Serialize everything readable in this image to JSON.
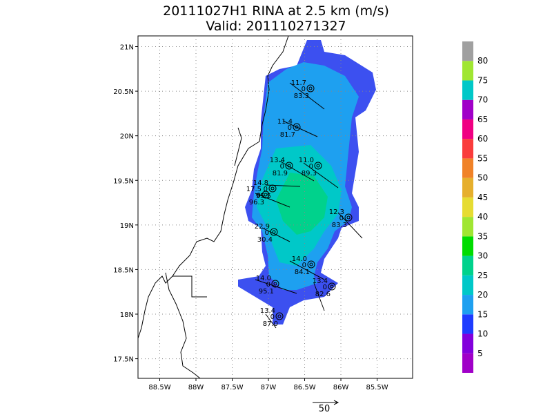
{
  "title": [
    "20111027H1 RINA at 2.5 km (m/s)",
    "Valid: 201110271327"
  ],
  "map": {
    "xlim": [
      -88.8,
      -85.01
    ],
    "ylim": [
      17.28,
      21.12
    ],
    "xticks": [
      {
        "value": -88.5,
        "label": "88.5W"
      },
      {
        "value": -88,
        "label": "88W"
      },
      {
        "value": -87.5,
        "label": "87.5W"
      },
      {
        "value": -87,
        "label": "87W"
      },
      {
        "value": -86.5,
        "label": "86.5W"
      },
      {
        "value": -86,
        "label": "86W"
      },
      {
        "value": -85.5,
        "label": "85.5W"
      }
    ],
    "yticks": [
      {
        "value": 17.5,
        "label": "17.5N"
      },
      {
        "value": 18,
        "label": "18N"
      },
      {
        "value": 18.5,
        "label": "18.5N"
      },
      {
        "value": 19,
        "label": "19N"
      },
      {
        "value": 19.5,
        "label": "19.5N"
      },
      {
        "value": 20,
        "label": "20N"
      },
      {
        "value": 20.5,
        "label": "20.5N"
      },
      {
        "value": 21,
        "label": "21N"
      }
    ],
    "grid": true
  },
  "colorbar": {
    "levels": [
      5,
      10,
      15,
      20,
      25,
      30,
      35,
      40,
      45,
      50,
      55,
      60,
      65,
      70,
      75,
      80
    ],
    "colors": [
      "#a000c8",
      "#8200dc",
      "#1e3cff",
      "#1ea0f0",
      "#00c8c8",
      "#00d28c",
      "#00dc00",
      "#a0e632",
      "#e6dc32",
      "#e6af2d",
      "#f08228",
      "#fa3c3c",
      "#f00082",
      "#a000c8",
      "#00c8c8",
      "#a0e632",
      "#a0a0a0"
    ]
  },
  "stations": [
    {
      "labels": [
        "11.7",
        "0",
        "83.3"
      ]
    },
    {
      "labels": [
        "11.4",
        "0",
        "81.7"
      ]
    },
    {
      "labels": [
        "13.4",
        "0",
        "81.9"
      ]
    },
    {
      "labels": [
        "11.0",
        "0",
        "89.3"
      ]
    },
    {
      "labels": [
        "14.8",
        "0",
        "95.5"
      ]
    },
    {
      "labels": [
        "17.5",
        "0",
        "96.3"
      ]
    },
    {
      "labels": [
        "12.3",
        "0",
        "83.3"
      ]
    },
    {
      "labels": [
        "22.9",
        "0",
        "30.4"
      ]
    },
    {
      "labels": [
        "14.0",
        "0",
        "84.1"
      ]
    },
    {
      "labels": [
        "14.0",
        "0",
        "95.1"
      ]
    },
    {
      "labels": [
        "13.4",
        "0",
        "82.6"
      ]
    },
    {
      "labels": [
        "13.4",
        "0",
        "87.0"
      ]
    }
  ],
  "reference_vector": {
    "label": "50"
  }
}
